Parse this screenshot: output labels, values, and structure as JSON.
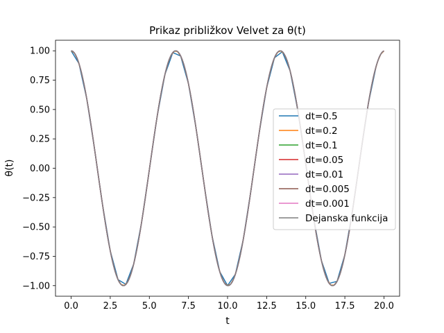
{
  "chart_data": {
    "type": "line",
    "title": "Prikaz približkov Velvet za θ(t)",
    "xlabel": "t",
    "ylabel": "θ(t)",
    "xlim": [
      -1.0,
      21.0
    ],
    "ylim": [
      -1.09,
      1.09
    ],
    "xticks": [
      0.0,
      2.5,
      5.0,
      7.5,
      10.0,
      12.5,
      15.0,
      17.5,
      20.0
    ],
    "xtick_labels": [
      "0.0",
      "2.5",
      "5.0",
      "7.5",
      "10.0",
      "12.5",
      "15.0",
      "17.5",
      "20.0"
    ],
    "yticks": [
      -1.0,
      -0.75,
      -0.5,
      -0.25,
      0.0,
      0.25,
      0.5,
      0.75,
      1.0
    ],
    "ytick_labels": [
      "−1.00",
      "−0.75",
      "−0.50",
      "−0.25",
      "0.00",
      "0.25",
      "0.50",
      "0.75",
      "1.00"
    ],
    "grid": false,
    "legend_position": "center-right",
    "function": "cos(0.94 t)",
    "t_range": [
      0.0,
      20.0
    ],
    "series": [
      {
        "name": "dt=0.5",
        "color": "#1f77b4",
        "dt": 0.5,
        "x_max": 19.5
      },
      {
        "name": "dt=0.2",
        "color": "#ff7f0e",
        "dt": 0.2,
        "x_max": 20.0
      },
      {
        "name": "dt=0.1",
        "color": "#2ca02c",
        "dt": 0.1,
        "x_max": 20.0
      },
      {
        "name": "dt=0.05",
        "color": "#d62728",
        "dt": 0.05,
        "x_max": 20.0
      },
      {
        "name": "dt=0.01",
        "color": "#9467bd",
        "dt": 0.01,
        "x_max": 20.0
      },
      {
        "name": "dt=0.005",
        "color": "#8c564b",
        "dt": 0.005,
        "x_max": 20.0
      },
      {
        "name": "dt=0.001",
        "color": "#e377c2",
        "dt": 0.001,
        "x_max": 20.0
      },
      {
        "name": "Dejanska funkcija",
        "color": "#7f7f7f",
        "dt": 0.02,
        "x_max": 20.0
      }
    ]
  }
}
